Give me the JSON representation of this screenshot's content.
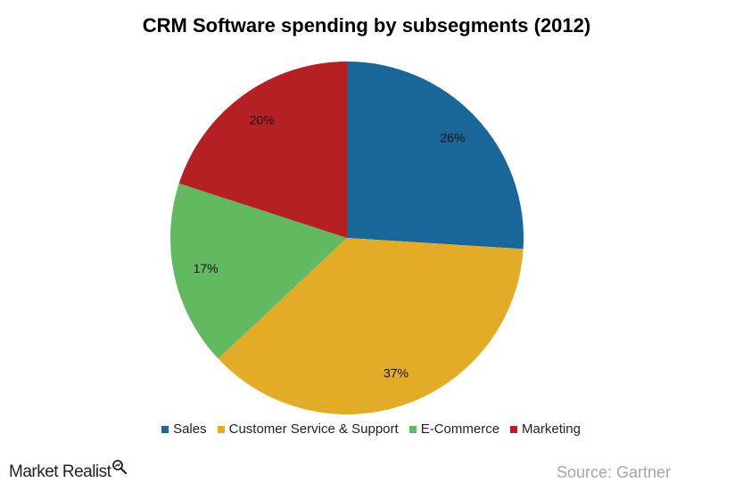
{
  "chart_data": {
    "type": "pie",
    "title": "CRM Software spending by subsegments (2012)",
    "categories": [
      "Sales",
      "Customer Service & Support",
      "E-Commerce",
      "Marketing"
    ],
    "values": [
      26,
      37,
      17,
      20
    ],
    "labels": [
      "26%",
      "37%",
      "17%",
      "20%"
    ],
    "colors": [
      "#1a6699",
      "#e3ac28",
      "#63b95f",
      "#b52025"
    ],
    "legend_position": "bottom",
    "start_angle": "12 o'clock, clockwise"
  },
  "footer": {
    "brand": "Market Realist",
    "source": "Source: Gartner"
  }
}
